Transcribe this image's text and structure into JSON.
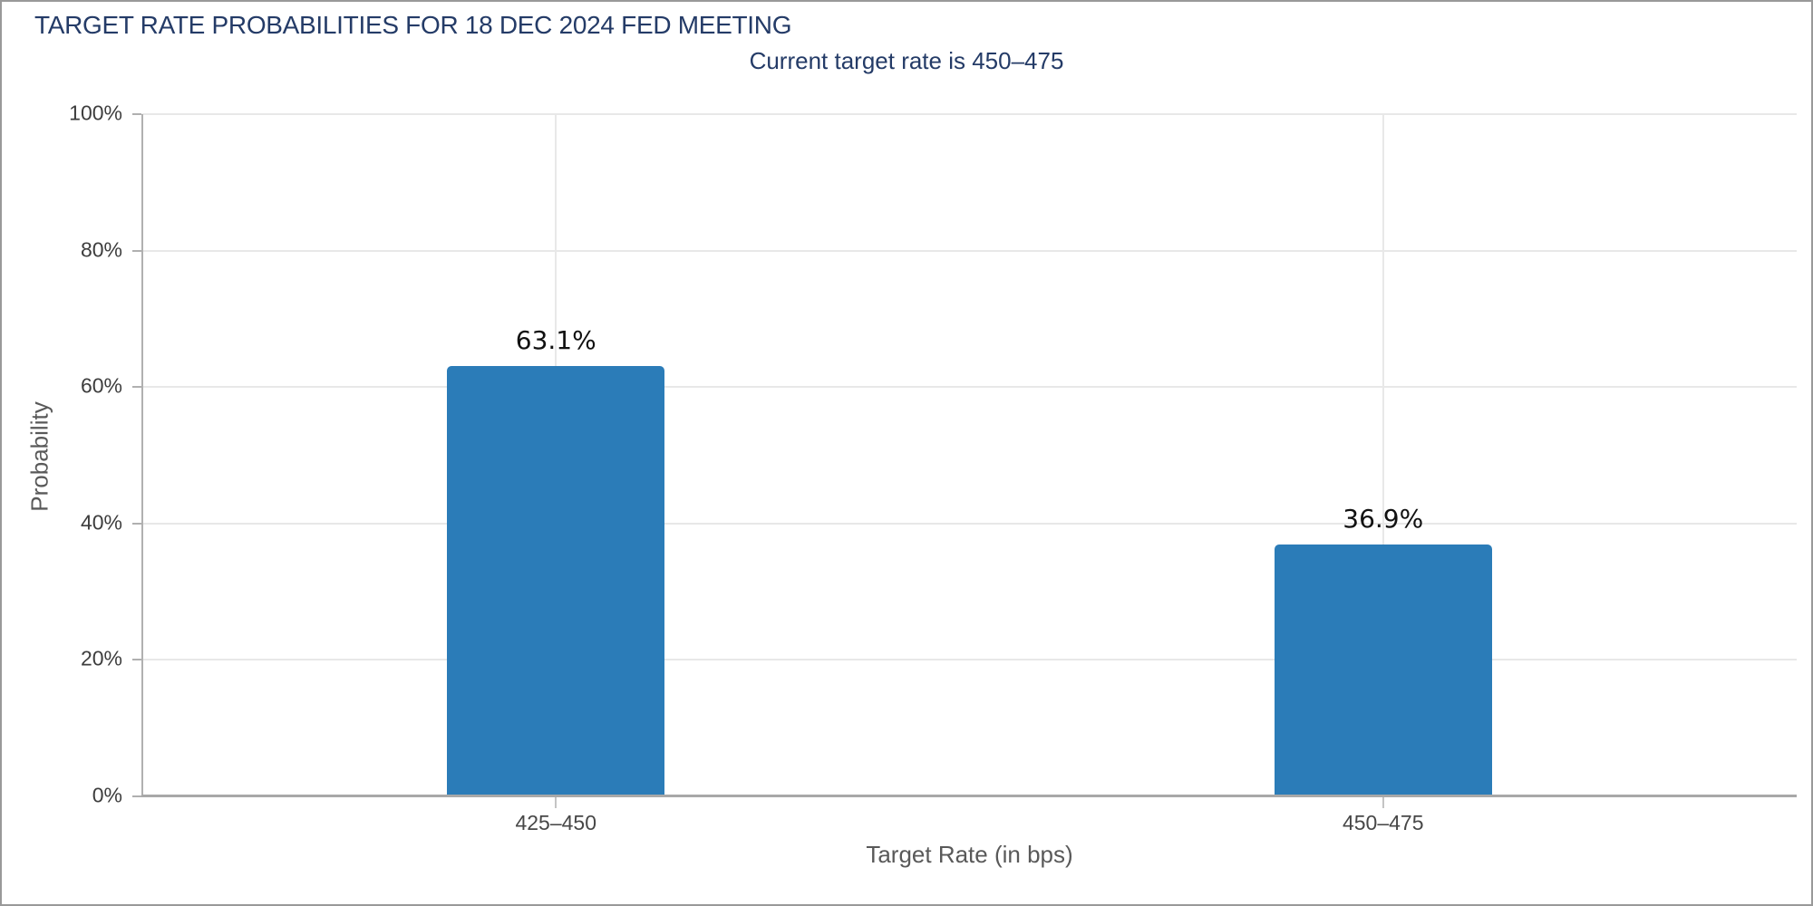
{
  "chart_data": {
    "type": "bar",
    "title": "TARGET RATE PROBABILITIES FOR 18 DEC 2024 FED MEETING",
    "subtitle": "Current target rate is 450–475",
    "categories": [
      "425–450",
      "450–475"
    ],
    "values": [
      63.1,
      36.9
    ],
    "value_labels": [
      "63.1%",
      "36.9%"
    ],
    "xlabel": "Target Rate (in bps)",
    "ylabel": "Probability",
    "ylim": [
      0,
      100
    ],
    "yticks": [
      0,
      20,
      40,
      60,
      80,
      100
    ],
    "ytick_labels": [
      "0%",
      "20%",
      "40%",
      "60%",
      "80%",
      "100%"
    ],
    "legend": "none",
    "grid": {
      "horizontal": true,
      "vertical": "at-category-centers"
    },
    "colors": {
      "bar": "#2b7cb8",
      "title": "#243b67",
      "subtitle": "#243b67",
      "gridline": "#e8e8e8",
      "axis_line": "#b0b0b0",
      "tick_label": "#3d3d3d",
      "axis_title": "#595959",
      "value_label": "#111111",
      "frame_border": "#999999"
    }
  }
}
